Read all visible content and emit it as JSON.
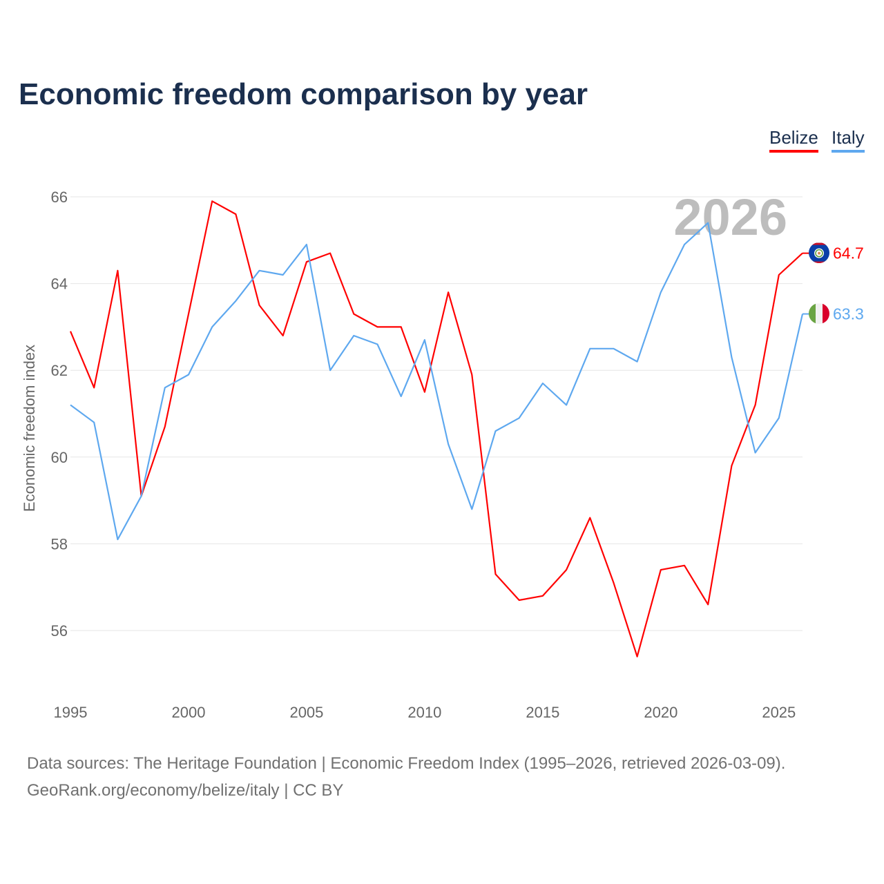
{
  "title": "Economic freedom comparison by year",
  "legend": [
    {
      "label": "Belize",
      "color": "#ff0000"
    },
    {
      "label": "Italy",
      "color": "#5ea8ef"
    }
  ],
  "year_watermark": "2026",
  "footer": {
    "line1": "Data sources: The Heritage Foundation | Economic Freedom Index (1995–2026, retrieved 2026-03-09).",
    "line2": "GeoRank.org/economy/belize/italy | CC BY"
  },
  "chart_data": {
    "type": "line",
    "title": "Economic freedom comparison by year",
    "xlabel": "",
    "ylabel": "Economic freedom index",
    "x": [
      1995,
      1996,
      1997,
      1998,
      1999,
      2000,
      2001,
      2002,
      2003,
      2004,
      2005,
      2006,
      2007,
      2008,
      2009,
      2010,
      2011,
      2012,
      2013,
      2014,
      2015,
      2016,
      2017,
      2018,
      2019,
      2020,
      2021,
      2022,
      2023,
      2024,
      2025,
      2026
    ],
    "xticks": [
      "1995",
      "2000",
      "2005",
      "2010",
      "2015",
      "2020",
      "2025"
    ],
    "yticks": [
      "56",
      "58",
      "60",
      "62",
      "64",
      "66"
    ],
    "ylim": [
      54.6,
      66
    ],
    "xlim": [
      1995,
      2026
    ],
    "grid": true,
    "legend_position": "top-right",
    "series": [
      {
        "name": "Belize",
        "color": "#ff0000",
        "end_label": "64.7",
        "flag": "belize-flag",
        "values": [
          62.9,
          61.6,
          64.3,
          59.1,
          60.7,
          63.3,
          65.9,
          65.6,
          63.5,
          62.8,
          64.5,
          64.7,
          63.3,
          63.0,
          63.0,
          61.5,
          63.8,
          61.9,
          57.3,
          56.7,
          56.8,
          57.4,
          58.6,
          57.1,
          55.4,
          57.4,
          57.5,
          56.6,
          59.8,
          61.2,
          64.2,
          64.7
        ]
      },
      {
        "name": "Italy",
        "color": "#5ea8ef",
        "end_label": "63.3",
        "flag": "italy-flag",
        "values": [
          61.2,
          60.8,
          58.1,
          59.1,
          61.6,
          61.9,
          63.0,
          63.6,
          64.3,
          64.2,
          64.9,
          62.0,
          62.8,
          62.6,
          61.4,
          62.7,
          60.3,
          58.8,
          60.6,
          60.9,
          61.7,
          61.2,
          62.5,
          62.5,
          62.2,
          63.8,
          64.9,
          65.4,
          62.3,
          60.1,
          60.9,
          63.3
        ]
      }
    ]
  }
}
